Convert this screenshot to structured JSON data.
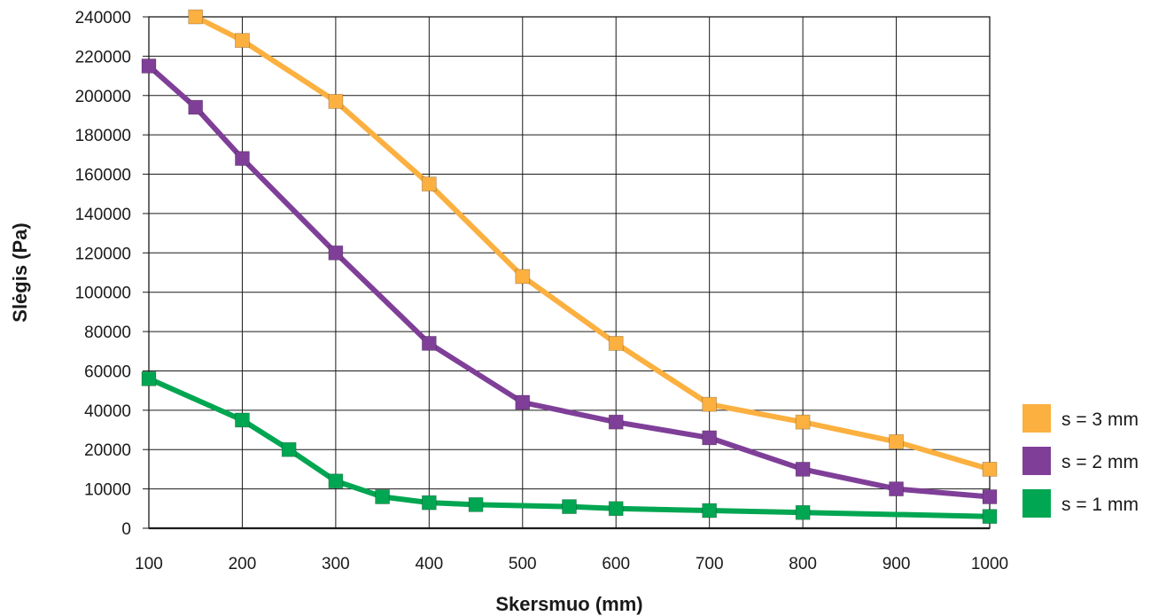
{
  "chart_data": {
    "type": "line",
    "xlabel": "Skersmuo  (mm)",
    "ylabel": "Slėgis  (Pa)",
    "x_ticks": [
      100,
      200,
      300,
      400,
      500,
      600,
      700,
      800,
      900,
      1000
    ],
    "y_ticks": [
      0,
      10000,
      20000,
      40000,
      60000,
      80000,
      100000,
      120000,
      140000,
      160000,
      180000,
      200000,
      220000,
      240000
    ],
    "xlim": [
      100,
      1000
    ],
    "ylim": [
      0,
      240000
    ],
    "grid": true,
    "legend_position": "bottom-right",
    "series": [
      {
        "name": "s = 3 mm",
        "color": "#FBB040",
        "points": [
          {
            "x": 150,
            "y": 240000
          },
          {
            "x": 200,
            "y": 228000
          },
          {
            "x": 300,
            "y": 197000
          },
          {
            "x": 400,
            "y": 155000
          },
          {
            "x": 500,
            "y": 108000
          },
          {
            "x": 600,
            "y": 74000
          },
          {
            "x": 700,
            "y": 43000
          },
          {
            "x": 800,
            "y": 34000
          },
          {
            "x": 900,
            "y": 24000
          },
          {
            "x": 1000,
            "y": 15000
          }
        ]
      },
      {
        "name": "s = 2 mm",
        "color": "#7F3F98",
        "points": [
          {
            "x": 100,
            "y": 215000
          },
          {
            "x": 150,
            "y": 194000
          },
          {
            "x": 200,
            "y": 168000
          },
          {
            "x": 300,
            "y": 120000
          },
          {
            "x": 400,
            "y": 74000
          },
          {
            "x": 500,
            "y": 44000
          },
          {
            "x": 600,
            "y": 34000
          },
          {
            "x": 700,
            "y": 26000
          },
          {
            "x": 800,
            "y": 15000
          },
          {
            "x": 900,
            "y": 10000
          },
          {
            "x": 1000,
            "y": 8000
          }
        ]
      },
      {
        "name": "s = 1 mm",
        "color": "#00A651",
        "points": [
          {
            "x": 100,
            "y": 56000
          },
          {
            "x": 200,
            "y": 35000
          },
          {
            "x": 250,
            "y": 20000
          },
          {
            "x": 300,
            "y": 12000
          },
          {
            "x": 350,
            "y": 8000
          },
          {
            "x": 400,
            "y": 6500
          },
          {
            "x": 450,
            "y": 6000
          },
          {
            "x": 550,
            "y": 5500
          },
          {
            "x": 600,
            "y": 5000
          },
          {
            "x": 700,
            "y": 4500
          },
          {
            "x": 800,
            "y": 4000
          },
          {
            "x": 1000,
            "y": 3000
          }
        ]
      }
    ]
  }
}
